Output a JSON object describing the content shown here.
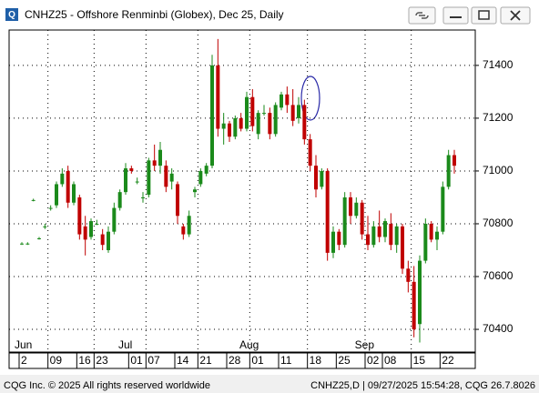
{
  "window_title": "CNHZ25 - Offshore Renminbi (Globex), Dec 25, Daily",
  "status": {
    "left": "CQG Inc. © 2025 All rights reserved worldwide",
    "right": "CNHZ25,D | 09/27/2025 15:54:28, CQG 26.7.8026"
  },
  "chart_data": {
    "type": "candlestick",
    "up_color": "#1b8a1b",
    "down_color": "#c00000",
    "grid": true,
    "ylim": [
      70314,
      71534
    ],
    "yticks": [
      70400,
      70600,
      70800,
      71000,
      71200,
      71400
    ],
    "months": [
      {
        "label": "Jun",
        "index": 0
      },
      {
        "label": "Jul",
        "index": 18
      },
      {
        "label": "Aug",
        "index": 39
      },
      {
        "label": "Sep",
        "index": 59
      }
    ],
    "categories": [
      "2",
      null,
      null,
      null,
      null,
      "09",
      null,
      null,
      null,
      null,
      "16",
      null,
      null,
      "23",
      null,
      null,
      null,
      null,
      null,
      "01",
      null,
      null,
      "07",
      null,
      null,
      null,
      null,
      "14",
      null,
      null,
      null,
      "21",
      null,
      null,
      null,
      null,
      "28",
      null,
      null,
      null,
      "01",
      null,
      null,
      null,
      null,
      "11",
      null,
      null,
      null,
      null,
      "18",
      null,
      null,
      null,
      null,
      "25",
      null,
      null,
      null,
      null,
      "02",
      null,
      null,
      "08",
      null,
      null,
      null,
      null,
      "15",
      null,
      null,
      null,
      null,
      "22",
      null,
      null
    ],
    "open": [
      70725,
      70725,
      70890,
      70745,
      70790,
      70860,
      70870,
      70950,
      71000,
      70880,
      70900,
      70790,
      70750,
      70800,
      70760,
      70700,
      70770,
      70860,
      70920,
      71010,
      70960,
      70900,
      70910,
      71040,
      71020,
      71020,
      70960,
      70950,
      70790,
      70760,
      70920,
      70950,
      70990,
      71020,
      71400,
      71160,
      71180,
      71130,
      71200,
      71160,
      71280,
      71140,
      71220,
      71220,
      71140,
      71240,
      71290,
      71250,
      71200,
      71250,
      71120,
      71020,
      70940,
      71000,
      70690,
      70770,
      70720,
      70900,
      70830,
      70880,
      70760,
      70720,
      70790,
      70750,
      70800,
      70720,
      70790,
      70630,
      70580,
      70420,
      70660,
      70800,
      70740,
      70770,
      70940,
      71060
    ],
    "high": [
      70730,
      70730,
      70895,
      70750,
      70800,
      70870,
      70960,
      71010,
      71020,
      70960,
      70910,
      70830,
      70820,
      70815,
      70780,
      70790,
      70880,
      70930,
      71030,
      71020,
      70975,
      70920,
      71050,
      71100,
      71110,
      71040,
      71010,
      70960,
      70800,
      70850,
      70940,
      71010,
      71030,
      71440,
      71500,
      71220,
      71190,
      71210,
      71220,
      71300,
      71310,
      71230,
      71250,
      71240,
      71260,
      71300,
      71320,
      71310,
      71280,
      71270,
      71140,
      71060,
      71010,
      71010,
      70790,
      70780,
      70920,
      70920,
      70900,
      70890,
      70830,
      70810,
      70850,
      70820,
      70840,
      70800,
      70800,
      70660,
      70640,
      70680,
      70820,
      70810,
      70790,
      70960,
      71080,
      71080
    ],
    "low": [
      70720,
      70720,
      70885,
      70740,
      70780,
      70850,
      70860,
      70940,
      70860,
      70870,
      70740,
      70680,
      70740,
      70795,
      70700,
      70690,
      70760,
      70850,
      70910,
      70990,
      70950,
      70880,
      70900,
      71000,
      70990,
      70920,
      70930,
      70800,
      70740,
      70750,
      70900,
      70940,
      70980,
      71010,
      71130,
      71100,
      71110,
      71120,
      71150,
      71150,
      71150,
      71120,
      71210,
      71120,
      71130,
      71230,
      71220,
      71170,
      71180,
      71100,
      71000,
      70900,
      70930,
      70660,
      70670,
      70700,
      70710,
      70800,
      70820,
      70740,
      70700,
      70710,
      70730,
      70730,
      70700,
      70690,
      70610,
      70540,
      70370,
      70350,
      70650,
      70730,
      70700,
      70760,
      70930,
      70990
    ],
    "close": [
      70725,
      70725,
      70890,
      70745,
      70790,
      70860,
      70950,
      70990,
      70880,
      70950,
      70760,
      70740,
      70810,
      70800,
      70720,
      70770,
      70860,
      70920,
      71010,
      71000,
      70960,
      70900,
      71040,
      71020,
      71080,
      70940,
      70990,
      70830,
      70760,
      70830,
      70930,
      71000,
      71020,
      71400,
      71160,
      71180,
      71130,
      71200,
      71160,
      71280,
      71170,
      71220,
      71220,
      71140,
      71250,
      71290,
      71250,
      71190,
      71250,
      71120,
      71020,
      70930,
      71000,
      70690,
      70770,
      70720,
      70900,
      70830,
      70880,
      70760,
      70720,
      70790,
      70750,
      70810,
      70720,
      70790,
      70630,
      70580,
      70400,
      70660,
      70800,
      70740,
      70770,
      70940,
      71060,
      71020
    ]
  }
}
